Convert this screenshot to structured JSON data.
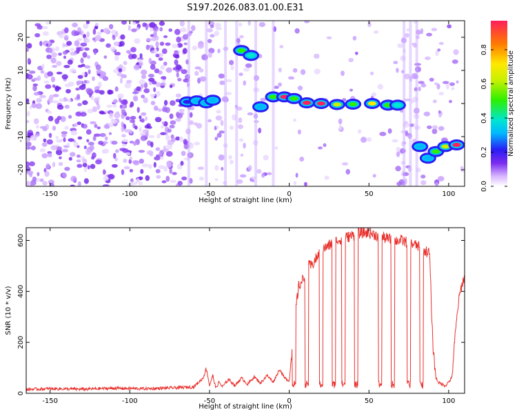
{
  "page_title": "S197.2026.083.01.00.E31",
  "chart_data": [
    {
      "type": "heatmap",
      "name": "spectrogram",
      "xlabel": "Height of straight line (km)",
      "ylabel": "Frequency (Hz)",
      "xlim": [
        -165,
        110
      ],
      "ylim": [
        -25,
        25
      ],
      "xticks": [
        -150,
        -100,
        -50,
        0,
        50,
        100
      ],
      "yticks": [
        -20,
        -10,
        0,
        10,
        20
      ],
      "colorbar": {
        "label": "Normalized spectral amplitude",
        "range": [
          0,
          0.97
        ],
        "ticks": [
          0.0,
          0.2,
          0.4,
          0.6,
          0.8
        ]
      },
      "signal_track": [
        {
          "x": -64,
          "freq": 0.5,
          "amp": 0.2
        },
        {
          "x": -58,
          "freq": 0.8,
          "amp": 0.22
        },
        {
          "x": -52,
          "freq": 0.2,
          "amp": 0.25
        },
        {
          "x": -48,
          "freq": 1.0,
          "amp": 0.22
        },
        {
          "x": -30,
          "freq": 16.0,
          "amp": 0.45
        },
        {
          "x": -24,
          "freq": 14.5,
          "amp": 0.35
        },
        {
          "x": -18,
          "freq": -1.0,
          "amp": 0.25
        },
        {
          "x": -10,
          "freq": 2.0,
          "amp": 0.4
        },
        {
          "x": -3,
          "freq": 2.0,
          "amp": 0.85
        },
        {
          "x": 3,
          "freq": 1.5,
          "amp": 0.45
        },
        {
          "x": 11,
          "freq": 0.2,
          "amp": 0.9
        },
        {
          "x": 20,
          "freq": 0.0,
          "amp": 0.95
        },
        {
          "x": 30,
          "freq": -0.3,
          "amp": 0.55
        },
        {
          "x": 40,
          "freq": -0.2,
          "amp": 0.45
        },
        {
          "x": 52,
          "freq": 0.0,
          "amp": 0.7
        },
        {
          "x": 62,
          "freq": -0.5,
          "amp": 0.45
        },
        {
          "x": 68,
          "freq": -0.5,
          "amp": 0.35
        },
        {
          "x": 82,
          "freq": -13.0,
          "amp": 0.25
        },
        {
          "x": 87,
          "freq": -16.5,
          "amp": 0.3
        },
        {
          "x": 92,
          "freq": -14.5,
          "amp": 0.45
        },
        {
          "x": 98,
          "freq": -13.0,
          "amp": 0.6
        },
        {
          "x": 105,
          "freq": -12.5,
          "amp": 0.85
        }
      ]
    },
    {
      "type": "line",
      "name": "snr",
      "xlabel": "Height of straight line (km)",
      "ylabel": "SNR (10 * v/v)",
      "xlim": [
        -165,
        110
      ],
      "ylim": [
        0,
        650
      ],
      "xticks": [
        -150,
        -100,
        -50,
        0,
        50,
        100
      ],
      "yticks": [
        0,
        200,
        400,
        600
      ],
      "series": [
        {
          "name": "SNR",
          "color": "#e8302c",
          "x": [
            -165,
            -150,
            -130,
            -110,
            -90,
            -70,
            -60,
            -54,
            -52,
            -50,
            -48,
            -46,
            -44,
            -42,
            -38,
            -34,
            -30,
            -26,
            -22,
            -18,
            -14,
            -10,
            -6,
            -3,
            0,
            2,
            4,
            6,
            8,
            10,
            12,
            14,
            16,
            18,
            20,
            25,
            30,
            35,
            40,
            45,
            50,
            55,
            60,
            65,
            70,
            75,
            80,
            85,
            88,
            90,
            92,
            94,
            98,
            102,
            104,
            106,
            108,
            110
          ],
          "y": [
            15,
            18,
            16,
            20,
            18,
            22,
            25,
            60,
            100,
            30,
            70,
            20,
            45,
            25,
            55,
            30,
            60,
            35,
            65,
            40,
            70,
            45,
            95,
            60,
            50,
            180,
            330,
            420,
            440,
            460,
            500,
            500,
            520,
            540,
            560,
            580,
            600,
            610,
            620,
            630,
            630,
            620,
            610,
            600,
            600,
            590,
            580,
            560,
            550,
            200,
            60,
            40,
            30,
            60,
            220,
            350,
            420,
            460
          ]
        }
      ],
      "dropouts": [
        [
          2,
          4
        ],
        [
          10,
          12
        ],
        [
          19,
          21
        ],
        [
          27,
          29
        ],
        [
          33,
          35
        ],
        [
          41,
          43
        ],
        [
          56,
          58
        ],
        [
          64,
          66
        ],
        [
          74,
          76
        ],
        [
          82,
          84
        ]
      ]
    }
  ]
}
